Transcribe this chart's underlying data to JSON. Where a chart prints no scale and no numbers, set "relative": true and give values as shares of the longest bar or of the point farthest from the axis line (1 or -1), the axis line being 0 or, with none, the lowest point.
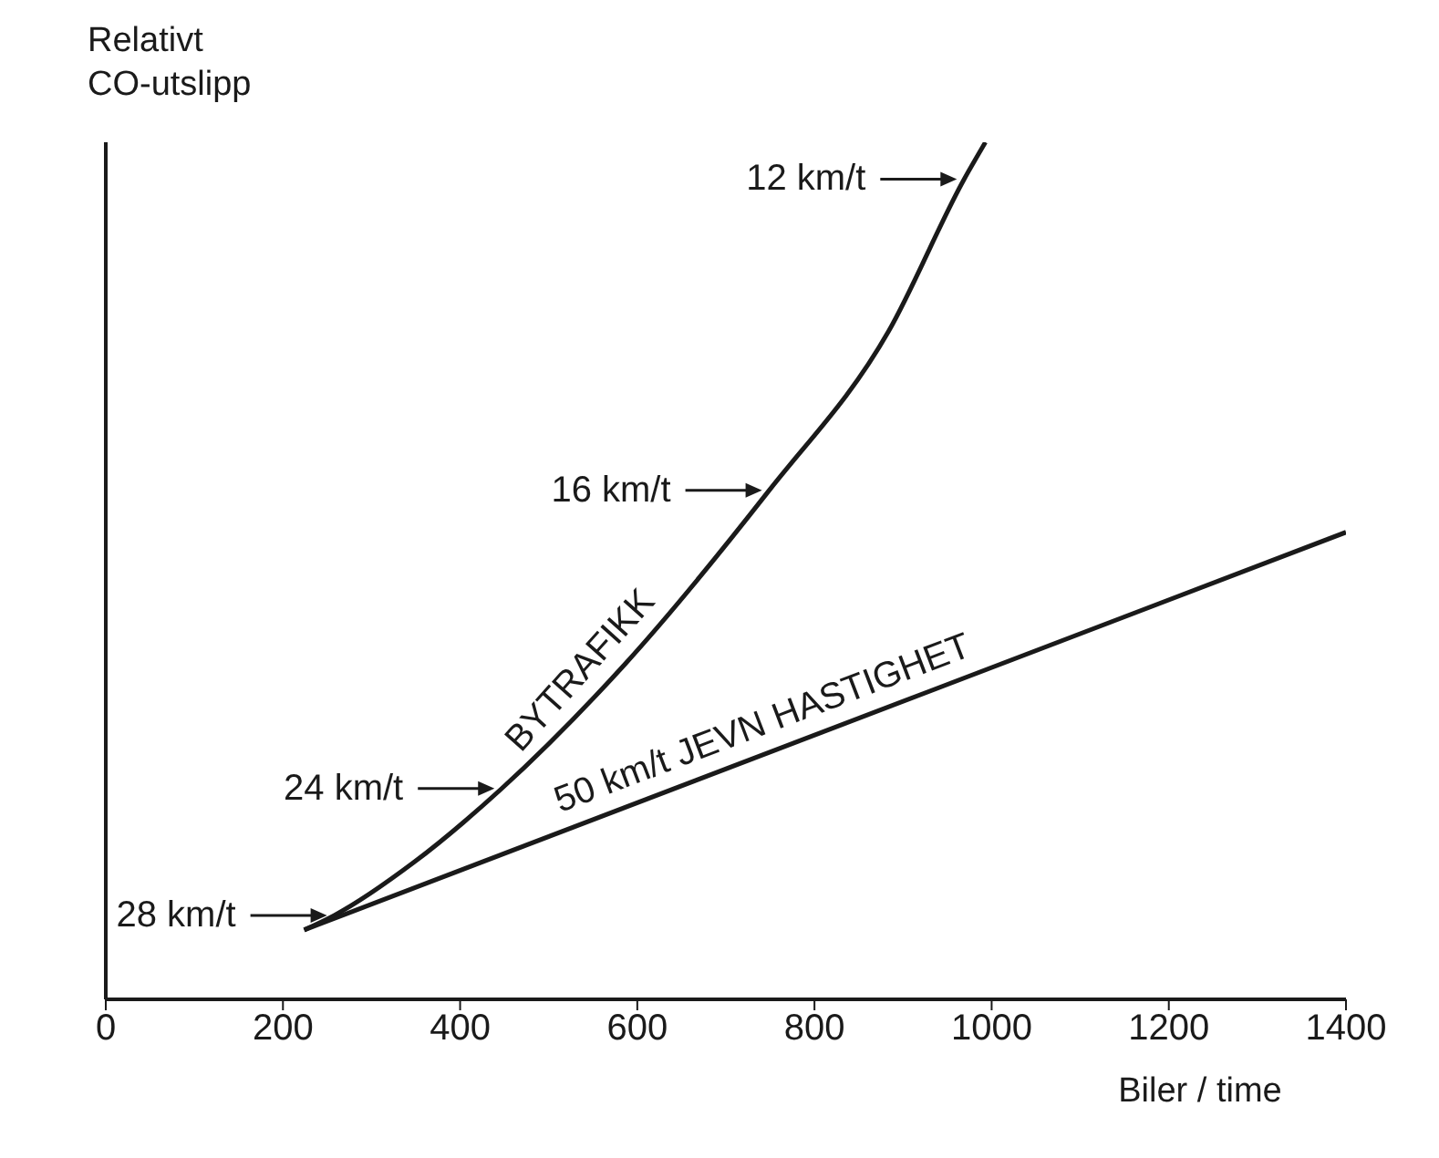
{
  "chart_data": {
    "type": "line",
    "relative": true,
    "xlabel": "Biler / time",
    "ylabel": "Relativt CO-utslipp",
    "xlim": [
      0,
      1400
    ],
    "xticks": [
      0,
      200,
      400,
      600,
      800,
      1000,
      1200,
      1400
    ],
    "marker": "none",
    "line_style": "solid",
    "series": [
      {
        "name": "BYTRAFIKK",
        "color": "#1a1a1a",
        "x": [
          224,
          258,
          348,
          447,
          586,
          749,
          884,
          969,
          993
        ],
        "values": [
          0.081,
          0.098,
          0.16,
          0.246,
          0.391,
          0.594,
          0.78,
          0.957,
          1.0
        ]
      },
      {
        "name": "50 km/t JEVN HASTIGHET",
        "color": "#1a1a1a",
        "x": [
          224,
          1400
        ],
        "values": [
          0.081,
          0.545
        ]
      }
    ],
    "annotations": [
      {
        "text": "12 km/t",
        "x": 969,
        "y": 0.957
      },
      {
        "text": "16 km/t",
        "x": 749,
        "y": 0.594
      },
      {
        "text": "24 km/t",
        "x": 447,
        "y": 0.246
      },
      {
        "text": "28 km/t",
        "x": 258,
        "y": 0.098
      }
    ]
  }
}
